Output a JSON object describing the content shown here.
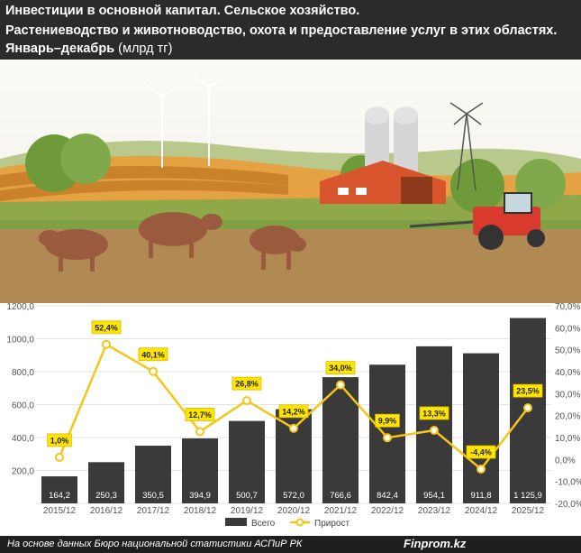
{
  "header": {
    "line1": "Инвестиции в основной капитал. Сельское хозяйство.",
    "line2": "Растениеводство и животноводство, охота и  предоставление услуг в этих областях.",
    "line3": "Январь–декабрь",
    "unit": "(млрд тг)"
  },
  "footer": {
    "source": "На основе данных Бюро национальной статистики АСПиР РК",
    "brand": "Finprom.kz"
  },
  "colors": {
    "bar": "#3a3a3a",
    "line": "#f5c518",
    "header": "#2b2b2b"
  },
  "chart_data": {
    "type": "bar",
    "categories": [
      "2015/12",
      "2016/12",
      "2017/12",
      "2018/12",
      "2019/12",
      "2020/12",
      "2021/12",
      "2022/12",
      "2023/12",
      "2024/12",
      "2025/12"
    ],
    "series": [
      {
        "name": "Всего",
        "type": "bar",
        "axis": "left",
        "values": [
          164.2,
          250.3,
          350.5,
          394.9,
          500.7,
          572.0,
          766.6,
          842.4,
          954.1,
          911.8,
          1125.9
        ],
        "labels": [
          "164,2",
          "250,3",
          "350,5",
          "394,9",
          "500,7",
          "572,0",
          "766,6",
          "842,4",
          "954,1",
          "911,8",
          "1 125,9"
        ]
      },
      {
        "name": "Прирост",
        "type": "line",
        "axis": "right",
        "values": [
          1.0,
          52.4,
          40.1,
          12.7,
          26.8,
          14.2,
          34.0,
          9.9,
          13.3,
          -4.4,
          23.5
        ],
        "labels": [
          "1,0%",
          "52,4%",
          "40,1%",
          "12,7%",
          "26,8%",
          "14,2%",
          "34,0%",
          "9,9%",
          "13,3%",
          "-4,4%",
          "23,5%"
        ]
      }
    ],
    "y_left": {
      "min": 0,
      "max": 1200,
      "ticks": [
        "",
        "200,0",
        "400,0",
        "600,0",
        "800,0",
        "1000,0",
        "1200,0"
      ]
    },
    "y_right": {
      "min": -20,
      "max": 70,
      "ticks": [
        "-20,0%",
        "-10,0%",
        "0,0%",
        "10,0%",
        "20,0%",
        "30,0%",
        "40,0%",
        "50,0%",
        "60,0%",
        "70,0%"
      ]
    },
    "legend": {
      "position": "bottom"
    }
  }
}
